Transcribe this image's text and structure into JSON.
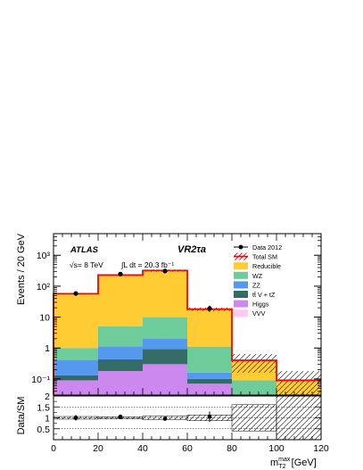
{
  "chart_data": [
    {
      "type": "bar",
      "stacked": true,
      "title": "",
      "xlabel": "",
      "ylabel": "Events / 20 GeV",
      "xlim": [
        0,
        120
      ],
      "ylim": [
        0.03,
        5000
      ],
      "yscale": "log",
      "x_ticks": [
        "0",
        "20",
        "40",
        "60",
        "80",
        "100",
        "120"
      ],
      "y_ticks": [
        "10⁻¹",
        "1",
        "10",
        "10²",
        "10³"
      ],
      "bin_edges": [
        0,
        20,
        40,
        60,
        80,
        100,
        120
      ],
      "annotations": {
        "experiment": "ATLAS",
        "energy": "√s= 8 TeV",
        "lumi": "∫L dt = 20.3 fb⁻¹",
        "region": "VR2τa"
      },
      "legend_position": "top-right",
      "legend": [
        "Data 2012",
        "Total SM",
        "Reducible",
        "WZ",
        "ZZ",
        "tt̄ V + tZ",
        "Higgs",
        "VVV"
      ],
      "series": [
        {
          "name": "VVV",
          "color": "#ffc8f0",
          "values": [
            0.0,
            0.0,
            0.02,
            0.0,
            0.0,
            0.0
          ]
        },
        {
          "name": "Higgs",
          "color": "#cc88ee",
          "values": [
            0.09,
            0.18,
            0.28,
            0.07,
            0.0,
            0.0
          ]
        },
        {
          "name": "tt̄ V + tZ",
          "color": "#336b66",
          "values": [
            0.04,
            0.25,
            0.63,
            0.03,
            0.0,
            0.0
          ]
        },
        {
          "name": "ZZ",
          "color": "#5599ee",
          "values": [
            0.27,
            0.7,
            1.04,
            0.06,
            0.0,
            0.0
          ]
        },
        {
          "name": "WZ",
          "color": "#6dcc99",
          "values": [
            0.6,
            3.9,
            8.0,
            0.95,
            0.09,
            0.0
          ]
        },
        {
          "name": "Reducible",
          "color": "#ffcc33",
          "values": [
            56.0,
            225.0,
            310.0,
            16.9,
            0.31,
            0.09
          ]
        }
      ],
      "total_sm": [
        57.0,
        230.0,
        320.0,
        18.0,
        0.4,
        0.09
      ],
      "data": {
        "name": "Data 2012",
        "x": [
          10,
          30,
          50,
          70
        ],
        "y": [
          58,
          245,
          310,
          19
        ],
        "err": [
          8,
          16,
          18,
          4.4
        ]
      },
      "colors": {
        "total_sm": "#ff0000",
        "data": "#000000",
        "band": "#000000"
      }
    },
    {
      "type": "scatter",
      "ylabel": "Data/SM",
      "xlabel": "m_T2^max [GeV]",
      "xlim": [
        0,
        120
      ],
      "ylim": [
        0,
        2
      ],
      "x_ticks": [
        "0",
        "20",
        "40",
        "60",
        "80",
        "100",
        "120"
      ],
      "y_ticks": [
        "0.5",
        "1",
        "1.5",
        "2"
      ],
      "x": [
        10,
        30,
        50,
        70
      ],
      "y": [
        1.0,
        1.05,
        0.96,
        1.05
      ],
      "err": [
        0.13,
        0.07,
        0.06,
        0.24
      ],
      "band_x": [
        0,
        20,
        40,
        60,
        80,
        100,
        120
      ],
      "band_half_width": [
        0.06,
        0.05,
        0.08,
        0.13,
        0.6,
        1.0
      ],
      "reference_lines": [
        0.5,
        1.0,
        1.5
      ]
    }
  ]
}
